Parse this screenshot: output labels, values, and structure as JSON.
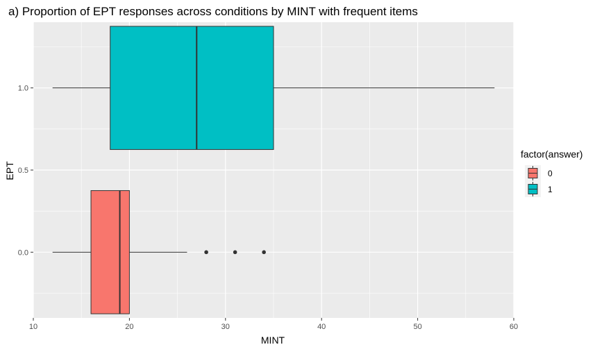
{
  "chart_data": {
    "type": "boxplot",
    "orientation": "horizontal",
    "title": "a) Proportion of EPT responses across conditions by MINT with frequent items",
    "xlabel": "MINT",
    "ylabel": "EPT",
    "xlim": [
      10,
      60
    ],
    "ylim": [
      -0.4,
      1.4
    ],
    "x_ticks": [
      10,
      20,
      30,
      40,
      50,
      60
    ],
    "y_ticks": [
      0.0,
      0.5,
      1.0
    ],
    "y_tick_labels": [
      "0.0",
      "0.5",
      "1.0"
    ],
    "grid": true,
    "legend": {
      "title": "factor(answer)",
      "position": "right",
      "entries": [
        "0",
        "1"
      ]
    },
    "colors": {
      "0": "#F8766D",
      "1": "#00BFC4",
      "panel": "#EBEBEB",
      "grid": "#FFFFFF",
      "outline": "#333333"
    },
    "series": [
      {
        "name": "0",
        "y": 0.0,
        "min": 12,
        "q1": 16,
        "median": 19,
        "q3": 20,
        "max": 26,
        "outliers": [
          28,
          31,
          34
        ]
      },
      {
        "name": "1",
        "y": 1.0,
        "min": 12,
        "q1": 18,
        "median": 27,
        "q3": 35,
        "max": 58,
        "outliers": []
      }
    ]
  }
}
